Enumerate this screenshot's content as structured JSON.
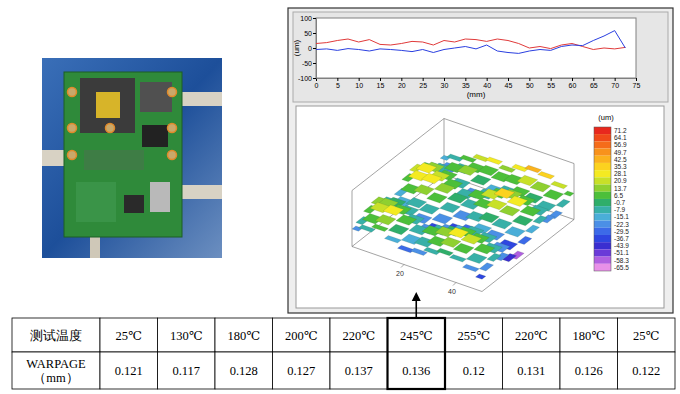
{
  "chart_data": [
    {
      "type": "line",
      "x": [
        0,
        2.5,
        5,
        7.5,
        10,
        12.5,
        15,
        17.5,
        20,
        22.5,
        25,
        27.5,
        30,
        32.5,
        35,
        37.5,
        40,
        42.5,
        45,
        47.5,
        50,
        52.5,
        55,
        57.5,
        60,
        62.5,
        65,
        67.5,
        70,
        72.5
      ],
      "series": [
        {
          "color": "#e03a3a",
          "values": [
            15,
            18,
            25,
            30,
            20,
            28,
            12,
            10,
            15,
            22,
            20,
            10,
            25,
            20,
            30,
            28,
            22,
            30,
            25,
            15,
            0,
            5,
            -2,
            10,
            15,
            5,
            -5,
            0,
            -3,
            2
          ]
        },
        {
          "color": "#2a3fe0",
          "values": [
            -5,
            -3,
            -8,
            -2,
            -5,
            -10,
            -3,
            -5,
            -8,
            -12,
            -5,
            -15,
            -5,
            0,
            5,
            -3,
            10,
            -10,
            -15,
            -18,
            -10,
            -5,
            -8,
            5,
            10,
            8,
            25,
            40,
            58,
            0
          ]
        }
      ],
      "x_label": "(mm)",
      "y_label": "(um)",
      "xlim": [
        0,
        75
      ],
      "xticks": [
        0,
        5,
        10,
        15,
        20,
        25,
        30,
        35,
        40,
        45,
        50,
        55,
        60,
        65,
        70,
        75
      ],
      "ylim": [
        -100,
        100
      ],
      "yticks": [
        -100,
        -50,
        0,
        50,
        100
      ],
      "grid": false
    },
    {
      "type": "surface",
      "x": [
        0,
        6.25,
        12.5,
        18.75,
        25,
        31.25,
        37.5,
        43.75,
        50,
        56.25,
        62.5,
        68.75,
        75
      ],
      "y": [
        0,
        5,
        10,
        15,
        20,
        25,
        30,
        35,
        40,
        45,
        50
      ],
      "z": [
        [
          -20,
          -10,
          5,
          12,
          -5,
          -25,
          -15,
          10,
          20,
          8,
          -10,
          -30,
          -15
        ],
        [
          -10,
          5,
          20,
          15,
          0,
          -15,
          5,
          25,
          30,
          15,
          -5,
          -20,
          -5
        ],
        [
          5,
          15,
          25,
          10,
          -10,
          -5,
          15,
          30,
          20,
          5,
          10,
          -10,
          5
        ],
        [
          -15,
          0,
          10,
          -5,
          -20,
          -10,
          5,
          15,
          10,
          -5,
          15,
          5,
          20
        ],
        [
          -30,
          -15,
          -5,
          -20,
          -35,
          -25,
          -10,
          0,
          -5,
          -20,
          0,
          10,
          25
        ],
        [
          -25,
          -10,
          5,
          -10,
          -25,
          -40,
          -20,
          -5,
          5,
          -10,
          -15,
          5,
          15
        ],
        [
          -10,
          5,
          15,
          0,
          -15,
          -30,
          -10,
          10,
          20,
          5,
          -5,
          10,
          30
        ],
        [
          0,
          15,
          25,
          10,
          -5,
          -15,
          0,
          20,
          35,
          15,
          5,
          20,
          40
        ],
        [
          -5,
          10,
          20,
          5,
          -10,
          -20,
          -5,
          15,
          25,
          10,
          0,
          15,
          35
        ],
        [
          -20,
          -5,
          5,
          -10,
          -25,
          -35,
          -15,
          0,
          10,
          -5,
          -10,
          5,
          20
        ],
        [
          -35,
          -20,
          -10,
          -25,
          -45,
          -55,
          -30,
          -15,
          -5,
          -20,
          -25,
          -10,
          5
        ]
      ],
      "xlim": [
        0,
        75
      ],
      "ylim": [
        0,
        50
      ],
      "yticks": [
        20,
        40
      ],
      "tick_labels": "y",
      "color_bar": {
        "title": "(um)",
        "range": [
          -65.5,
          71.2
        ],
        "ticks": [
          71.2,
          64.1,
          56.9,
          49.7,
          42.5,
          35.3,
          28.1,
          20.9,
          13.7,
          6.5,
          -0.7,
          -7.9,
          -15.1,
          -22.3,
          -29.5,
          -36.7,
          -43.9,
          -51.1,
          -58.3,
          -65.5
        ],
        "colors": [
          "#e8281e",
          "#f04a1a",
          "#f56c1a",
          "#f8921c",
          "#fbb21e",
          "#fcd21f",
          "#f4ea22",
          "#c8e028",
          "#8fd030",
          "#4cbf3a",
          "#2fae6a",
          "#38b0a8",
          "#4aaed8",
          "#4b8fe6",
          "#3c6ae8",
          "#2e46e0",
          "#3a2ed0",
          "#6a3ad8",
          "#b060e0",
          "#e890e8"
        ]
      }
    }
  ],
  "table": {
    "rows": [
      [
        "测试温度",
        "25℃",
        "130℃",
        "180℃",
        "200℃",
        "220℃",
        "245℃",
        "255℃",
        "220℃",
        "180℃",
        "25℃"
      ],
      [
        [
          "WARPAGE",
          "（mm）"
        ],
        "0.121",
        "0.117",
        "0.128",
        "0.127",
        "0.137",
        "0.136",
        "0.12",
        "0.131",
        "0.126",
        "0.122"
      ]
    ],
    "highlight": 6
  }
}
